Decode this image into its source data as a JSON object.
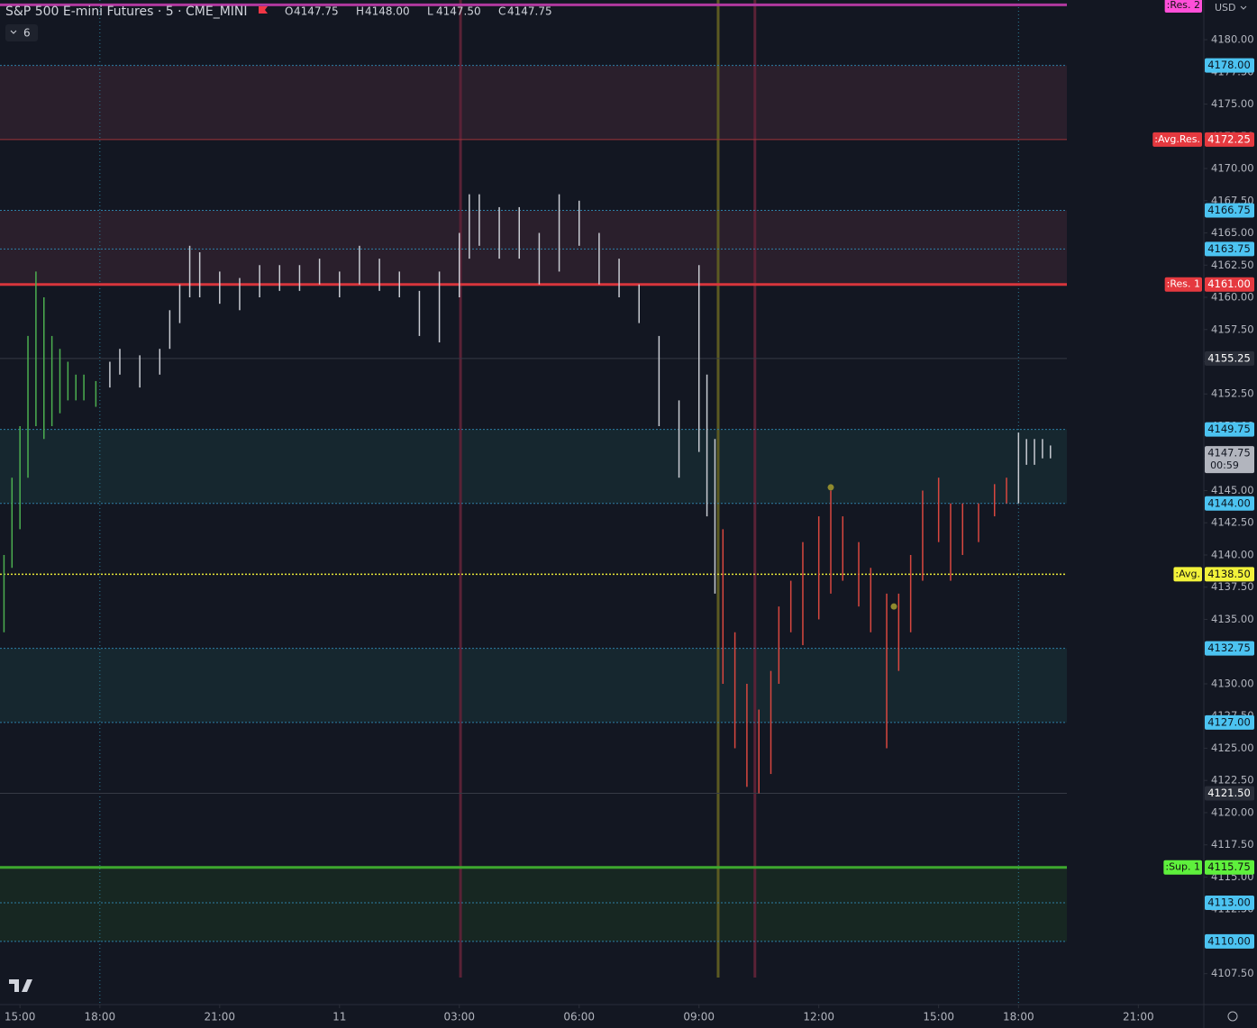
{
  "header": {
    "title": "S&P 500 E-mini Futures · 5 · CME_MINI",
    "ohlc": [
      {
        "key": "O",
        "value": "4147.75"
      },
      {
        "key": "H",
        "value": "4148.00"
      },
      {
        "key": "L",
        "value": "4147.50"
      },
      {
        "key": "C",
        "value": "4147.75"
      }
    ],
    "indicators": "6",
    "currency": "USD"
  },
  "chart_data": {
    "type": "range-bar",
    "xlim": [
      -0.5,
      29.64
    ],
    "ylim": [
      4105.1,
      4183.08
    ],
    "xticks": [
      {
        "value": 0,
        "label": "15:00"
      },
      {
        "value": 2,
        "label": "18:00"
      },
      {
        "value": 5,
        "label": "21:00"
      },
      {
        "value": 8,
        "label": "11"
      },
      {
        "value": 11,
        "label": "03:00"
      },
      {
        "value": 14,
        "label": "06:00"
      },
      {
        "value": 17,
        "label": "09:00"
      },
      {
        "value": 20,
        "label": "12:00"
      },
      {
        "value": 23,
        "label": "15:00"
      },
      {
        "value": 25,
        "label": "18:00"
      },
      {
        "value": 28,
        "label": "21:00"
      }
    ],
    "yticks": [
      {
        "value": 4107.5,
        "label": "4107.50"
      },
      {
        "value": 4110,
        "label": "4110.00"
      },
      {
        "value": 4112.5,
        "label": "4112.50"
      },
      {
        "value": 4115,
        "label": "4115.00"
      },
      {
        "value": 4117.5,
        "label": "4117.50"
      },
      {
        "value": 4120,
        "label": "4120.00"
      },
      {
        "value": 4122.5,
        "label": "4122.50"
      },
      {
        "value": 4125,
        "label": "4125.00"
      },
      {
        "value": 4127.5,
        "label": "4127.50"
      },
      {
        "value": 4130,
        "label": "4130.00"
      },
      {
        "value": 4132.5,
        "label": "4132.50"
      },
      {
        "value": 4135,
        "label": "4135.00"
      },
      {
        "value": 4137.5,
        "label": "4137.50"
      },
      {
        "value": 4140,
        "label": "4140.00"
      },
      {
        "value": 4142.5,
        "label": "4142.50"
      },
      {
        "value": 4145,
        "label": "4145.00"
      },
      {
        "value": 4147.5,
        "label": "4147.50"
      },
      {
        "value": 4150,
        "label": "4150.00"
      },
      {
        "value": 4152.5,
        "label": "4152.50"
      },
      {
        "value": 4155,
        "label": "4155.00"
      },
      {
        "value": 4157.5,
        "label": "4157.50"
      },
      {
        "value": 4160,
        "label": "4160.00"
      },
      {
        "value": 4162.5,
        "label": "4162.50"
      },
      {
        "value": 4165,
        "label": "4165.00"
      },
      {
        "value": 4167.5,
        "label": "4167.50"
      },
      {
        "value": 4170,
        "label": "4170.00"
      },
      {
        "value": 4172.5,
        "label": "4172.50"
      },
      {
        "value": 4175,
        "label": "4175.00"
      },
      {
        "value": 4177.5,
        "label": "4177.50"
      },
      {
        "value": 4180,
        "label": "4180.00"
      }
    ],
    "zones": [
      {
        "from": 4178,
        "to": 4172.25,
        "color": "#2a1f2c"
      },
      {
        "from": 4166.75,
        "to": 4161,
        "color": "#2a1f2c"
      },
      {
        "from": 4149.75,
        "to": 4144,
        "color": "#16272f"
      },
      {
        "from": 4132.75,
        "to": 4127,
        "color": "#16272f"
      },
      {
        "from": 4115.75,
        "to": 4110,
        "color": "#172722"
      }
    ],
    "vlines": [
      {
        "x": 11.03,
        "color": "#5a2236"
      },
      {
        "x": 17.48,
        "color": "#5c5a22"
      },
      {
        "x": 18.4,
        "color": "#5a2236"
      }
    ],
    "session_breaks": [
      2,
      25
    ],
    "levels": [
      {
        "name": ":Res. 2",
        "price": 4182.7,
        "color": "#b0399f",
        "width": 3,
        "dash": "",
        "label_bg": "#ff4fd8",
        "label_fg": "#111"
      },
      {
        "price": {
          "value": 4178,
          "label": "4178.00"
        },
        "color": "#2e7fa6",
        "width": 1,
        "dash": "2 2",
        "label_bg": "#4cc3f1",
        "label_fg": "#0b1520"
      },
      {
        "name": ":Avg.Res.",
        "price": {
          "value": 4172.25,
          "label": "4172.25"
        },
        "color": "#9e3538",
        "width": 1,
        "dash": "",
        "label_bg": "#e5393f",
        "label_fg": "#fff"
      },
      {
        "price": {
          "value": 4166.75,
          "label": "4166.75"
        },
        "color": "#2e7fa6",
        "width": 1,
        "dash": "2 2",
        "label_bg": "#4cc3f1",
        "label_fg": "#0b1520"
      },
      {
        "price": {
          "value": 4163.75,
          "label": "4163.75"
        },
        "color": "#2e7fa6",
        "width": 1,
        "dash": "2 2",
        "label_bg": "#4cc3f1",
        "label_fg": "#0b1520"
      },
      {
        "name": ":Res. 1",
        "price": {
          "value": 4161,
          "label": "4161.00"
        },
        "color": "#d8363c",
        "width": 3,
        "dash": "",
        "label_bg": "#e5393f",
        "label_fg": "#fff"
      },
      {
        "price": {
          "value": 4155.25,
          "label": "4155.25"
        },
        "color": "#363a45",
        "width": 1,
        "dash": "",
        "label_bg": "#2a2e39",
        "label_fg": "#fff"
      },
      {
        "price": {
          "value": 4149.75,
          "label": "4149.75"
        },
        "color": "#2e7fa6",
        "width": 1,
        "dash": "2 2",
        "label_bg": "#4cc3f1",
        "label_fg": "#0b1520"
      },
      {
        "price": {
          "value": 4144,
          "label": "4144.00"
        },
        "color": "#2e7fa6",
        "width": 1,
        "dash": "2 2",
        "label_bg": "#4cc3f1",
        "label_fg": "#0b1520"
      },
      {
        "name": ":Avg.",
        "price": {
          "value": 4138.5,
          "label": "4138.50"
        },
        "color": "#e8e83a",
        "width": 1.5,
        "dash": "2 2",
        "label_bg": "#f2f23a",
        "label_fg": "#111"
      },
      {
        "price": {
          "value": 4132.75,
          "label": "4132.75"
        },
        "color": "#2e7fa6",
        "width": 1,
        "dash": "2 2",
        "label_bg": "#4cc3f1",
        "label_fg": "#0b1520"
      },
      {
        "price": {
          "value": 4127,
          "label": "4127.00"
        },
        "color": "#2e7fa6",
        "width": 1,
        "dash": "2 2",
        "label_bg": "#4cc3f1",
        "label_fg": "#0b1520"
      },
      {
        "price": {
          "value": 4121.5,
          "label": "4121.50"
        },
        "color": "#363a45",
        "width": 1,
        "dash": "",
        "label_bg": "#2a2e39",
        "label_fg": "#fff"
      },
      {
        "name": ":Sup. 1",
        "price": {
          "value": 4115.75,
          "label": "4115.75"
        },
        "color": "#3ea82e",
        "width": 3,
        "dash": "",
        "label_bg": "#5ef03c",
        "label_fg": "#111"
      },
      {
        "price": {
          "value": 4113,
          "label": "4113.00"
        },
        "color": "#2e7fa6",
        "width": 1,
        "dash": "2 2",
        "label_bg": "#4cc3f1",
        "label_fg": "#0b1520"
      },
      {
        "price": {
          "value": 4110,
          "label": "4110.00"
        },
        "color": "#2e7fa6",
        "width": 1,
        "dash": "2 2",
        "label_bg": "#4cc3f1",
        "label_fg": "#0b1520"
      }
    ],
    "series": [
      {
        "color": "#4caf50",
        "x": [
          -0.4,
          -0.2,
          0,
          0.2,
          0.4,
          0.6,
          0.8,
          1,
          1.2,
          1.4,
          1.6,
          1.9
        ],
        "low": [
          4134,
          4139,
          4142,
          4146,
          4150,
          4149,
          4150,
          4151,
          4152,
          4152,
          4152,
          4151.5
        ],
        "high": [
          4140,
          4146,
          4150,
          4157,
          4162,
          4160,
          4157,
          4156,
          4155,
          4154,
          4154,
          4153.5
        ]
      },
      {
        "color": "#c8cbd2",
        "x": [
          2.25,
          2.5,
          3,
          3.5,
          3.75,
          4,
          4.25,
          4.5,
          5,
          5.5,
          6,
          6.5,
          7,
          7.5,
          8,
          8.5,
          9,
          9.5,
          10,
          10.5,
          11,
          11.25,
          11.5,
          12,
          12.5,
          13,
          13.5,
          14,
          14.5,
          15,
          15.5,
          16,
          16.5,
          17,
          17.2,
          17.4
        ],
        "low": [
          4153,
          4154,
          4153,
          4154,
          4156,
          4158,
          4160,
          4160,
          4159.5,
          4159,
          4160,
          4160.5,
          4160.5,
          4161,
          4160,
          4161,
          4160.5,
          4160,
          4157,
          4156.5,
          4160,
          4163,
          4164,
          4163,
          4163,
          4161,
          4162,
          4164,
          4161,
          4160,
          4158,
          4150,
          4146,
          4148,
          4143,
          4137
        ],
        "high": [
          4155,
          4156,
          4155.5,
          4156,
          4159,
          4161,
          4164,
          4163.5,
          4162,
          4161.5,
          4162.5,
          4162.5,
          4162.5,
          4163,
          4162,
          4164,
          4163,
          4162,
          4160.5,
          4162,
          4165,
          4168,
          4168,
          4167,
          4167,
          4165,
          4168,
          4167.5,
          4165,
          4163,
          4161,
          4157,
          4152,
          4162.5,
          4154,
          4149
        ]
      },
      {
        "color": "#d9473f",
        "x": [
          17.6,
          17.9,
          18.2,
          18.5,
          18.8,
          19,
          19.3,
          19.6,
          20,
          20.3,
          20.6,
          21,
          21.3,
          21.7,
          22,
          22.3,
          22.6,
          23,
          23.3,
          23.6,
          24,
          24.4,
          24.7
        ],
        "low": [
          4130,
          4125,
          4122,
          4121.5,
          4123,
          4130,
          4134,
          4133,
          4135,
          4137,
          4138,
          4136,
          4134,
          4125,
          4131,
          4134,
          4138,
          4141,
          4138,
          4140,
          4141,
          4143,
          4144
        ],
        "high": [
          4142,
          4134,
          4130,
          4128,
          4131,
          4136,
          4138,
          4141,
          4143,
          4145,
          4143,
          4141,
          4139,
          4137,
          4137,
          4140,
          4145,
          4146,
          4144,
          4144,
          4144,
          4145.5,
          4146
        ]
      },
      {
        "color": "#c8cbd2",
        "x": [
          25,
          25.2,
          25.4,
          25.6,
          25.8
        ],
        "low": [
          4144,
          4147,
          4147,
          4147.5,
          4147.5
        ],
        "high": [
          4149.5,
          4149,
          4149,
          4149,
          4148.5
        ]
      }
    ],
    "markers": {
      "color": "#8f8a2e",
      "x": [
        20.3,
        21.88
      ],
      "values": [
        4145.25,
        4136
      ]
    },
    "current": {
      "price": {
        "value": 4147.75,
        "label": "4147.75"
      },
      "countdown": "00:59"
    }
  }
}
